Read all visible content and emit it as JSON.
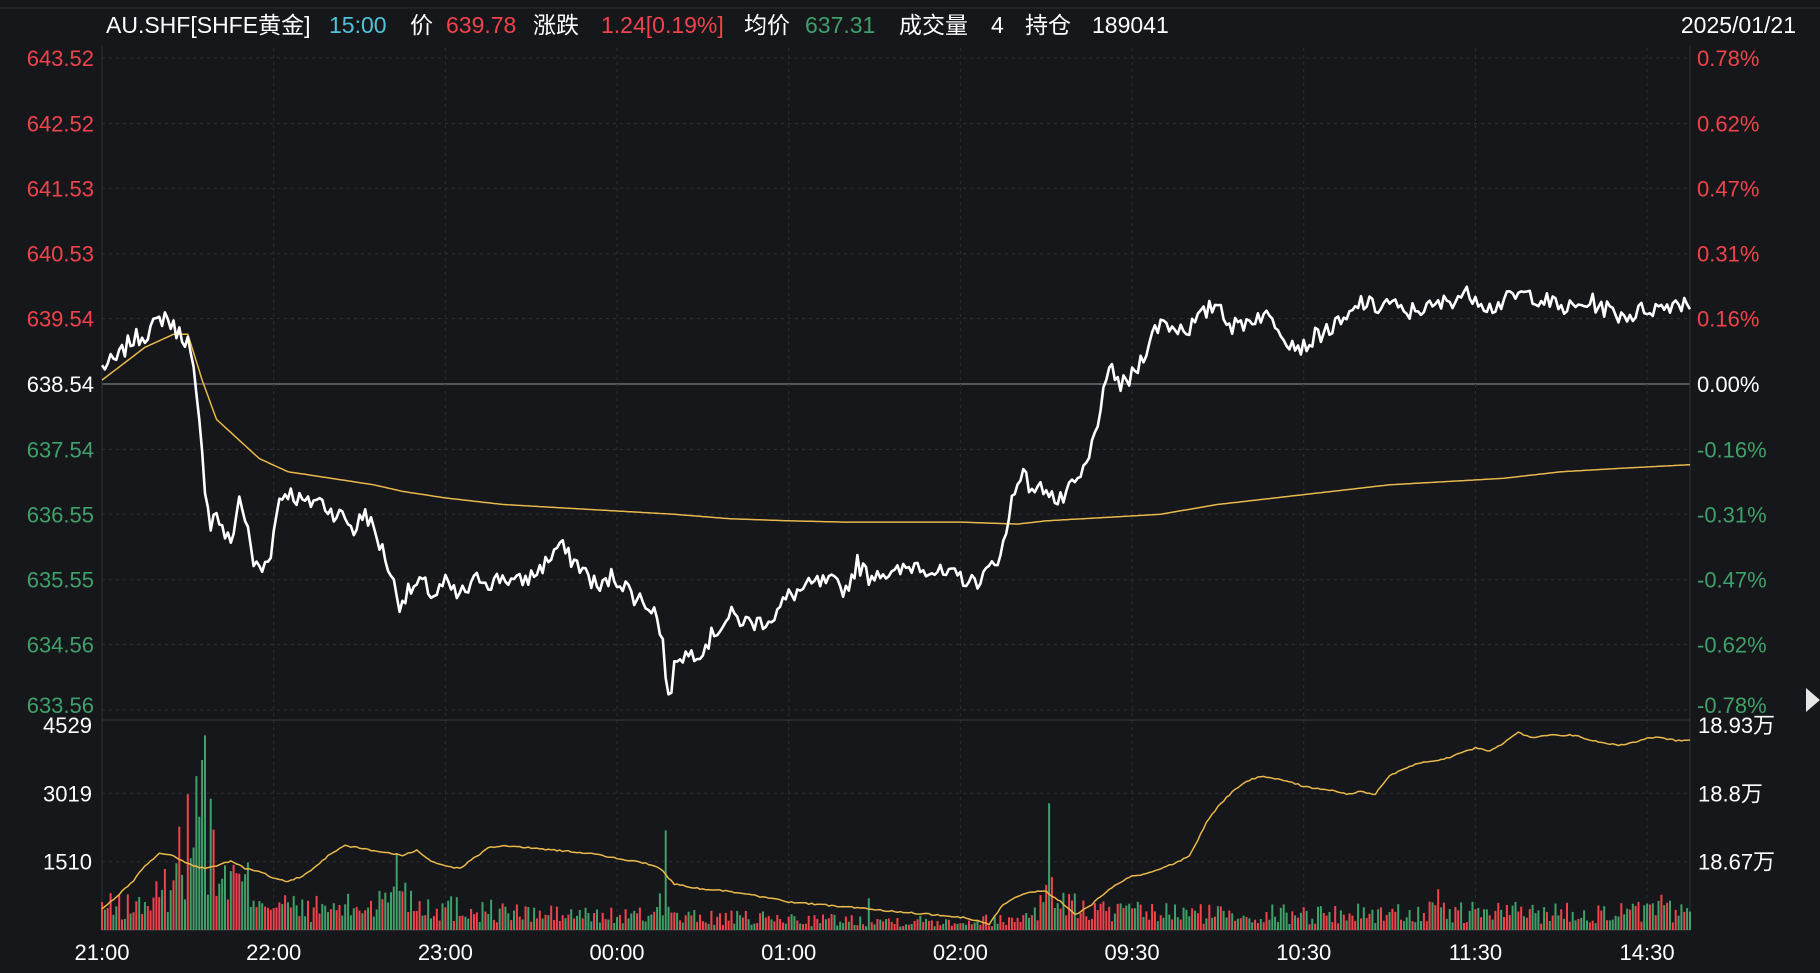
{
  "header": {
    "symbol": "AU.SHF[SHFE黄金]",
    "time": "15:00",
    "price_label": "价",
    "price": "639.78",
    "change_label": "涨跌",
    "change": "1.24[0.19%]",
    "avg_label": "均价",
    "avg_price": "637.31",
    "volume_label": "成交量",
    "volume": "4",
    "oi_label": "持仓",
    "open_interest": "189041",
    "date": "2025/01/21"
  },
  "colors": {
    "background": "#16171b",
    "up": "#f0434b",
    "down": "#3fa06a",
    "neutral": "#ffffff",
    "time_accent": "#4fc3d8",
    "price_line": "#ffffff",
    "avg_line": "#e8b84a",
    "oi_line": "#e8b84a",
    "grid": "#2c2e33"
  },
  "chart_data": {
    "type": "line",
    "prev_close": 638.54,
    "price_axis": {
      "labels": [
        "643.52",
        "642.52",
        "641.53",
        "640.53",
        "639.54",
        "638.54",
        "637.54",
        "636.55",
        "635.55",
        "634.56",
        "633.56"
      ],
      "percent_labels": [
        "0.78%",
        "0.62%",
        "0.47%",
        "0.31%",
        "0.16%",
        "0.00%",
        "-0.16%",
        "-0.31%",
        "-0.47%",
        "-0.62%",
        "-0.78%"
      ],
      "ylim": [
        633.56,
        643.52
      ]
    },
    "volume_axis": {
      "labels": [
        "4529",
        "3019",
        "1510"
      ],
      "ylim": [
        0,
        4529
      ]
    },
    "oi_axis": {
      "labels": [
        "18.93万",
        "18.8万",
        "18.67万"
      ]
    },
    "x_labels": [
      "21:00",
      "22:00",
      "23:00",
      "00:00",
      "01:00",
      "02:00",
      "09:30",
      "10:30",
      "11:30",
      "14:30"
    ],
    "x_label_index": [
      0,
      60,
      120,
      180,
      240,
      300,
      360,
      420,
      480,
      540
    ],
    "n_points": 556,
    "price_anchors": [
      [
        0,
        638.8
      ],
      [
        5,
        638.9
      ],
      [
        10,
        639.2
      ],
      [
        15,
        639.3
      ],
      [
        20,
        639.5
      ],
      [
        22,
        639.6
      ],
      [
        25,
        639.4
      ],
      [
        30,
        639.2
      ],
      [
        32,
        638.7
      ],
      [
        34,
        637.9
      ],
      [
        36,
        637.0
      ],
      [
        38,
        636.4
      ],
      [
        40,
        636.6
      ],
      [
        42,
        636.3
      ],
      [
        45,
        636.1
      ],
      [
        48,
        636.8
      ],
      [
        50,
        636.5
      ],
      [
        53,
        635.8
      ],
      [
        56,
        635.7
      ],
      [
        59,
        636.0
      ],
      [
        62,
        636.8
      ],
      [
        65,
        636.9
      ],
      [
        68,
        636.8
      ],
      [
        72,
        636.7
      ],
      [
        75,
        636.8
      ],
      [
        80,
        636.6
      ],
      [
        85,
        636.5
      ],
      [
        88,
        636.3
      ],
      [
        92,
        636.6
      ],
      [
        95,
        636.3
      ],
      [
        99,
        635.9
      ],
      [
        104,
        635.2
      ],
      [
        108,
        635.4
      ],
      [
        112,
        635.5
      ],
      [
        116,
        635.3
      ],
      [
        120,
        635.5
      ],
      [
        124,
        635.3
      ],
      [
        128,
        635.4
      ],
      [
        132,
        635.6
      ],
      [
        136,
        635.5
      ],
      [
        140,
        635.6
      ],
      [
        145,
        635.5
      ],
      [
        150,
        635.6
      ],
      [
        155,
        635.8
      ],
      [
        160,
        636.1
      ],
      [
        163,
        635.9
      ],
      [
        166,
        635.8
      ],
      [
        170,
        635.6
      ],
      [
        174,
        635.4
      ],
      [
        178,
        635.6
      ],
      [
        182,
        635.5
      ],
      [
        186,
        635.3
      ],
      [
        190,
        635.2
      ],
      [
        193,
        635.1
      ],
      [
        196,
        634.6
      ],
      [
        198,
        633.7
      ],
      [
        201,
        634.4
      ],
      [
        205,
        634.4
      ],
      [
        210,
        634.5
      ],
      [
        215,
        634.8
      ],
      [
        220,
        635.0
      ],
      [
        225,
        634.9
      ],
      [
        230,
        634.9
      ],
      [
        235,
        635.0
      ],
      [
        240,
        635.3
      ],
      [
        245,
        635.4
      ],
      [
        250,
        635.5
      ],
      [
        255,
        635.5
      ],
      [
        260,
        635.4
      ],
      [
        264,
        635.8
      ],
      [
        268,
        635.6
      ],
      [
        272,
        635.7
      ],
      [
        276,
        635.6
      ],
      [
        280,
        635.7
      ],
      [
        285,
        635.8
      ],
      [
        290,
        635.7
      ],
      [
        295,
        635.6
      ],
      [
        300,
        635.6
      ],
      [
        304,
        635.5
      ],
      [
        308,
        635.6
      ],
      [
        312,
        635.8
      ],
      [
        316,
        636.2
      ],
      [
        318,
        636.8
      ],
      [
        321,
        637.2
      ],
      [
        324,
        637.0
      ],
      [
        327,
        636.9
      ],
      [
        330,
        637.0
      ],
      [
        334,
        636.7
      ],
      [
        338,
        636.9
      ],
      [
        342,
        637.1
      ],
      [
        345,
        637.4
      ],
      [
        347,
        637.8
      ],
      [
        349,
        638.2
      ],
      [
        351,
        638.5
      ],
      [
        353,
        638.8
      ],
      [
        356,
        638.5
      ],
      [
        359,
        638.6
      ],
      [
        362,
        638.8
      ],
      [
        366,
        639.2
      ],
      [
        370,
        639.5
      ],
      [
        375,
        639.4
      ],
      [
        380,
        639.4
      ],
      [
        385,
        639.6
      ],
      [
        390,
        639.8
      ],
      [
        395,
        639.4
      ],
      [
        400,
        639.5
      ],
      [
        405,
        639.6
      ],
      [
        410,
        639.5
      ],
      [
        415,
        639.2
      ],
      [
        420,
        639.1
      ],
      [
        425,
        639.3
      ],
      [
        430,
        639.4
      ],
      [
        435,
        639.5
      ],
      [
        440,
        639.8
      ],
      [
        445,
        639.7
      ],
      [
        450,
        639.8
      ],
      [
        455,
        639.6
      ],
      [
        460,
        639.7
      ],
      [
        465,
        639.7
      ],
      [
        470,
        639.8
      ],
      [
        475,
        639.9
      ],
      [
        480,
        639.9
      ],
      [
        485,
        639.7
      ],
      [
        490,
        639.8
      ],
      [
        495,
        639.9
      ],
      [
        500,
        639.9
      ],
      [
        505,
        639.8
      ],
      [
        510,
        639.7
      ],
      [
        515,
        639.7
      ],
      [
        520,
        639.8
      ],
      [
        525,
        639.7
      ],
      [
        530,
        639.6
      ],
      [
        535,
        639.6
      ],
      [
        540,
        639.7
      ],
      [
        545,
        639.7
      ],
      [
        550,
        639.8
      ],
      [
        555,
        639.78
      ]
    ],
    "avg_anchors": [
      [
        0,
        638.6
      ],
      [
        15,
        639.1
      ],
      [
        25,
        639.3
      ],
      [
        30,
        639.3
      ],
      [
        35,
        638.6
      ],
      [
        40,
        638.0
      ],
      [
        45,
        637.8
      ],
      [
        55,
        637.4
      ],
      [
        65,
        637.2
      ],
      [
        80,
        637.1
      ],
      [
        95,
        637.0
      ],
      [
        105,
        636.9
      ],
      [
        120,
        636.8
      ],
      [
        140,
        636.7
      ],
      [
        160,
        636.65
      ],
      [
        180,
        636.6
      ],
      [
        200,
        636.55
      ],
      [
        220,
        636.48
      ],
      [
        240,
        636.45
      ],
      [
        260,
        636.43
      ],
      [
        280,
        636.43
      ],
      [
        300,
        636.43
      ],
      [
        320,
        636.4
      ],
      [
        330,
        636.45
      ],
      [
        350,
        636.5
      ],
      [
        370,
        636.55
      ],
      [
        390,
        636.7
      ],
      [
        410,
        636.8
      ],
      [
        430,
        636.9
      ],
      [
        450,
        637.0
      ],
      [
        470,
        637.05
      ],
      [
        490,
        637.1
      ],
      [
        510,
        637.2
      ],
      [
        530,
        637.25
      ],
      [
        556,
        637.31
      ]
    ],
    "volume_anchors": [
      [
        0,
        500
      ],
      [
        10,
        500
      ],
      [
        20,
        700
      ],
      [
        25,
        1200
      ],
      [
        30,
        2000
      ],
      [
        33,
        3200
      ],
      [
        36,
        2800
      ],
      [
        38,
        1400
      ],
      [
        44,
        1100
      ],
      [
        50,
        1000
      ],
      [
        60,
        600
      ],
      [
        70,
        450
      ],
      [
        90,
        500
      ],
      [
        100,
        650
      ],
      [
        103,
        1300
      ],
      [
        106,
        800
      ],
      [
        112,
        550
      ],
      [
        130,
        450
      ],
      [
        150,
        350
      ],
      [
        170,
        320
      ],
      [
        190,
        300
      ],
      [
        195,
        600
      ],
      [
        197,
        500
      ],
      [
        200,
        280
      ],
      [
        230,
        250
      ],
      [
        260,
        220
      ],
      [
        300,
        200
      ],
      [
        320,
        230
      ],
      [
        328,
        600
      ],
      [
        332,
        900
      ],
      [
        336,
        650
      ],
      [
        340,
        500
      ],
      [
        350,
        420
      ],
      [
        360,
        380
      ],
      [
        390,
        360
      ],
      [
        420,
        350
      ],
      [
        460,
        380
      ],
      [
        500,
        400
      ],
      [
        530,
        380
      ],
      [
        556,
        420
      ]
    ],
    "volume_spikes": [
      [
        30,
        3000
      ],
      [
        33,
        3400
      ],
      [
        36,
        4300
      ],
      [
        38,
        2900
      ],
      [
        103,
        1700
      ],
      [
        197,
        2200
      ],
      [
        268,
        700
      ],
      [
        331,
        2800
      ],
      [
        467,
        900
      ],
      [
        545,
        780
      ]
    ],
    "oi_anchors": [
      [
        0,
        185700
      ],
      [
        5,
        185950
      ],
      [
        10,
        186200
      ],
      [
        15,
        186550
      ],
      [
        20,
        186800
      ],
      [
        25,
        186750
      ],
      [
        28,
        186650
      ],
      [
        32,
        186550
      ],
      [
        36,
        186500
      ],
      [
        40,
        186550
      ],
      [
        45,
        186650
      ],
      [
        50,
        186500
      ],
      [
        55,
        186450
      ],
      [
        60,
        186300
      ],
      [
        65,
        186250
      ],
      [
        70,
        186350
      ],
      [
        75,
        186550
      ],
      [
        80,
        186800
      ],
      [
        85,
        186950
      ],
      [
        90,
        186900
      ],
      [
        95,
        186850
      ],
      [
        100,
        186800
      ],
      [
        105,
        186750
      ],
      [
        110,
        186850
      ],
      [
        115,
        186650
      ],
      [
        120,
        186550
      ],
      [
        125,
        186500
      ],
      [
        130,
        186700
      ],
      [
        135,
        186900
      ],
      [
        140,
        186950
      ],
      [
        150,
        186900
      ],
      [
        160,
        186850
      ],
      [
        170,
        186800
      ],
      [
        180,
        186700
      ],
      [
        190,
        186600
      ],
      [
        195,
        186500
      ],
      [
        200,
        186200
      ],
      [
        210,
        186100
      ],
      [
        220,
        186050
      ],
      [
        230,
        185950
      ],
      [
        240,
        185850
      ],
      [
        250,
        185800
      ],
      [
        260,
        185750
      ],
      [
        270,
        185700
      ],
      [
        280,
        185650
      ],
      [
        290,
        185600
      ],
      [
        300,
        185550
      ],
      [
        305,
        185500
      ],
      [
        310,
        185400
      ],
      [
        315,
        185800
      ],
      [
        320,
        185950
      ],
      [
        325,
        186050
      ],
      [
        330,
        186050
      ],
      [
        335,
        185850
      ],
      [
        340,
        185600
      ],
      [
        345,
        185750
      ],
      [
        350,
        186000
      ],
      [
        355,
        186200
      ],
      [
        360,
        186350
      ],
      [
        365,
        186400
      ],
      [
        370,
        186500
      ],
      [
        375,
        186600
      ],
      [
        380,
        186750
      ],
      [
        383,
        187050
      ],
      [
        386,
        187400
      ],
      [
        390,
        187700
      ],
      [
        395,
        188000
      ],
      [
        400,
        188200
      ],
      [
        405,
        188300
      ],
      [
        410,
        188250
      ],
      [
        415,
        188200
      ],
      [
        420,
        188100
      ],
      [
        425,
        188050
      ],
      [
        430,
        188020
      ],
      [
        435,
        187950
      ],
      [
        440,
        188000
      ],
      [
        445,
        187950
      ],
      [
        450,
        188300
      ],
      [
        455,
        188450
      ],
      [
        460,
        188550
      ],
      [
        465,
        188600
      ],
      [
        470,
        188650
      ],
      [
        475,
        188750
      ],
      [
        480,
        188850
      ],
      [
        485,
        188800
      ],
      [
        490,
        188950
      ],
      [
        495,
        189150
      ],
      [
        500,
        189050
      ],
      [
        505,
        189100
      ],
      [
        510,
        189100
      ],
      [
        515,
        189100
      ],
      [
        520,
        189000
      ],
      [
        525,
        188950
      ],
      [
        530,
        188900
      ],
      [
        535,
        188950
      ],
      [
        540,
        189050
      ],
      [
        545,
        189050
      ],
      [
        550,
        189000
      ],
      [
        556,
        189000
      ]
    ],
    "oi_ylim": [
      185300,
      189300
    ]
  }
}
